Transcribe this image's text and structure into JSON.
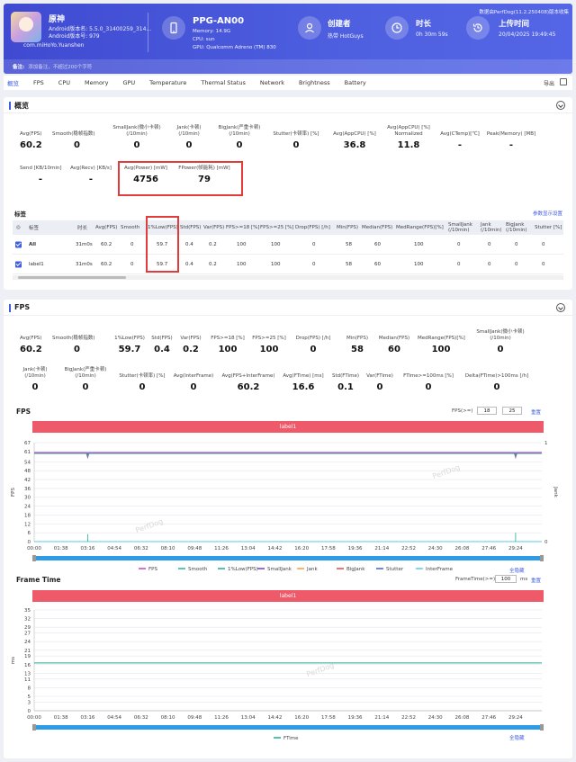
{
  "header": {
    "app_name": "原神",
    "android_version_name": "Android版本名: 5.5.0_31400259_314...",
    "android_version_code": "Android版本号: 979",
    "package": "com.miHoYo.Yuanshen",
    "device_name": "PPG-AN00",
    "memory": "Memory: 14.9G",
    "cpu": "CPU: sun",
    "gpu": "GPU: Qualcomm Adreno (TM) 830",
    "creator_title": "创建者",
    "creator_value": "热带 HotGuys",
    "duration_title": "时长",
    "duration_value": "0h 30m 59s",
    "upload_title": "上传时间",
    "upload_value": "20/04/2025 19:49:45",
    "top_right": "数据由PerfDog(11.2.250408)版本收集",
    "remark_label": "备注:",
    "remark_placeholder": "添加备注，不超过200个字符"
  },
  "tabs": [
    "概览",
    "FPS",
    "CPU",
    "Memory",
    "GPU",
    "Temperature",
    "Thermal Status",
    "Network",
    "Brightness",
    "Battery"
  ],
  "export_label": "导出",
  "overview": {
    "title": "概览",
    "metrics_row1": [
      {
        "label": "Avg(FPS)",
        "value": "60.2"
      },
      {
        "label": "Smooth(稳帧指数)",
        "value": "0"
      },
      {
        "label": "SmallJank(微小卡顿) (/10min)",
        "value": "0"
      },
      {
        "label": "Jank(卡顿) (/10min)",
        "value": "0"
      },
      {
        "label": "BigJank(严重卡顿) (/10min)",
        "value": "0"
      },
      {
        "label": "Stutter(卡顿率) [%]",
        "value": "0"
      },
      {
        "label": "Avg(AppCPU) [%]",
        "value": "36.8"
      },
      {
        "label": "Avg(AppCPU) [%] Normalized",
        "value": "11.8"
      },
      {
        "label": "Avg(CTemp)[℃]",
        "value": "-"
      },
      {
        "label": "Peak(Memory) [MB]",
        "value": "-"
      }
    ],
    "metrics_row2": [
      {
        "label": "Send [KB/10min]",
        "value": "-"
      },
      {
        "label": "Avg(Recv) [KB/s]",
        "value": "-"
      },
      {
        "label": "Avg(Power) [mW]",
        "value": "4756"
      },
      {
        "label": "FPower(帧能耗) [mW]",
        "value": "79"
      }
    ],
    "tags_label": "标签",
    "param_link": "参数显示设置",
    "table_headers": [
      "标签",
      "时长",
      "Avg(FPS)",
      "Smooth",
      "1%Low(FPS)",
      "Std(FPS)",
      "Var(FPS)",
      "FPS>=18 [%]",
      "FPS>=25 [%]",
      "Drop(FPS) [/h]",
      "Min(FPS)",
      "Median(FPS)",
      "MedRange(FPS)[%]",
      "SmallJank (/10min)",
      "Jank (/10min)",
      "BigJank (/10min)",
      "Stutter [%]"
    ],
    "rows": [
      {
        "name": "All",
        "cells": [
          "31m0s",
          "60.2",
          "0",
          "59.7",
          "0.4",
          "0.2",
          "100",
          "100",
          "0",
          "58",
          "60",
          "100",
          "0",
          "0",
          "0",
          "0"
        ]
      },
      {
        "name": "label1",
        "cells": [
          "31m0s",
          "60.2",
          "0",
          "59.7",
          "0.4",
          "0.2",
          "100",
          "100",
          "0",
          "58",
          "60",
          "100",
          "0",
          "0",
          "0",
          "0"
        ]
      }
    ]
  },
  "fps_section": {
    "title": "FPS",
    "metrics_row1": [
      {
        "label": "Avg(FPS)",
        "value": "60.2"
      },
      {
        "label": "Smooth(稳帧指数)",
        "value": "0"
      },
      {
        "label": "1%Low(FPS)",
        "value": "59.7"
      },
      {
        "label": "Std(FPS)",
        "value": "0.4"
      },
      {
        "label": "Var(FPS)",
        "value": "0.2"
      },
      {
        "label": "FPS>=18 [%]",
        "value": "100"
      },
      {
        "label": "FPS>=25 [%]",
        "value": "100"
      },
      {
        "label": "Drop(FPS) [/h]",
        "value": "0"
      },
      {
        "label": "Min(FPS)",
        "value": "58"
      },
      {
        "label": "Median(FPS)",
        "value": "60"
      },
      {
        "label": "MedRange(FPS)[%]",
        "value": "100"
      },
      {
        "label": "SmallJank(微小卡顿) (/10min)",
        "value": "0"
      }
    ],
    "metrics_row2": [
      {
        "label": "Jank(卡顿) (/10min)",
        "value": "0"
      },
      {
        "label": "BigJank(严重卡顿) (/10min)",
        "value": "0"
      },
      {
        "label": "Stutter(卡顿率) [%]",
        "value": "0"
      },
      {
        "label": "Avg(InterFrame)",
        "value": "0"
      },
      {
        "label": "Avg(FPS+InterFrame)",
        "value": "60.2"
      },
      {
        "label": "Avg(FTime) [ms]",
        "value": "16.6"
      },
      {
        "label": "Std(FTime)",
        "value": "0.1"
      },
      {
        "label": "Var(FTime)",
        "value": "0"
      },
      {
        "label": "FTime>=100ms [%]",
        "value": "0"
      },
      {
        "label": "Delta(FTime)>100ms [/h]",
        "value": "0"
      }
    ],
    "fps_chart_title": "FPS",
    "fps_threshold_label": "FPS(>=)",
    "fps_threshold_a": "18",
    "fps_threshold_b": "25",
    "reset_label": "重置",
    "label_bar": "label1",
    "show_all": "全隐藏",
    "frametime_chart_title": "Frame Time",
    "frametime_threshold_label": "FrameTime(>=)",
    "frametime_threshold": "100",
    "ms_unit": "ms",
    "watermark": "PerfDog"
  },
  "chart_data": [
    {
      "type": "line",
      "title": "FPS",
      "ylabel": "FPS",
      "y2label": "Jank",
      "ylim": [
        0,
        67
      ],
      "yticks": [
        0,
        6,
        12,
        18,
        24,
        30,
        36,
        42,
        48,
        54,
        61,
        67
      ],
      "y2ticks": [
        0,
        1
      ],
      "x_ticks": [
        "00:00",
        "01:38",
        "03:16",
        "04:54",
        "06:32",
        "08:10",
        "09:48",
        "11:26",
        "13:04",
        "14:42",
        "16:20",
        "17:58",
        "19:36",
        "21:14",
        "22:52",
        "24:30",
        "26:08",
        "27:46",
        "29:24"
      ],
      "series": [
        {
          "name": "FPS",
          "color": "#c146c9",
          "level": 60
        },
        {
          "name": "Smooth",
          "color": "#28b09a",
          "level": 0
        },
        {
          "name": "1%Low(FPS)",
          "color": "#1fae8c",
          "level": 59.7
        },
        {
          "name": "SmallJank",
          "color": "#6a3fd0",
          "level": 0
        },
        {
          "name": "Jank",
          "color": "#f59a3c",
          "level": 0
        },
        {
          "name": "BigJank",
          "color": "#e04848",
          "level": 0
        },
        {
          "name": "Stutter",
          "color": "#3f5de0",
          "level": 0
        },
        {
          "name": "InterFrame",
          "color": "#5bc8e8",
          "level": 0
        }
      ],
      "spikes": [
        {
          "x": "03:16",
          "value": 5
        },
        {
          "x": "29:24",
          "value": 6
        }
      ],
      "grid": true,
      "legend": "bottom"
    },
    {
      "type": "line",
      "title": "Frame Time",
      "ylabel": "ms",
      "ylim": [
        0,
        35
      ],
      "yticks": [
        0,
        3,
        5,
        8,
        11,
        13,
        16,
        19,
        21,
        24,
        27,
        29,
        32,
        35
      ],
      "x_ticks": [
        "00:00",
        "01:38",
        "03:16",
        "04:54",
        "06:32",
        "08:10",
        "09:48",
        "11:26",
        "13:04",
        "14:42",
        "16:20",
        "17:58",
        "19:36",
        "21:14",
        "22:52",
        "24:30",
        "26:08",
        "27:46",
        "29:24"
      ],
      "series": [
        {
          "name": "FTime",
          "color": "#1fae8c",
          "level": 16.6
        }
      ],
      "spikes": [
        {
          "x": "03:16",
          "max": 33,
          "min": 8
        },
        {
          "x": "29:24",
          "max": 33,
          "min": 8
        }
      ],
      "grid": true,
      "legend": "bottom"
    }
  ]
}
